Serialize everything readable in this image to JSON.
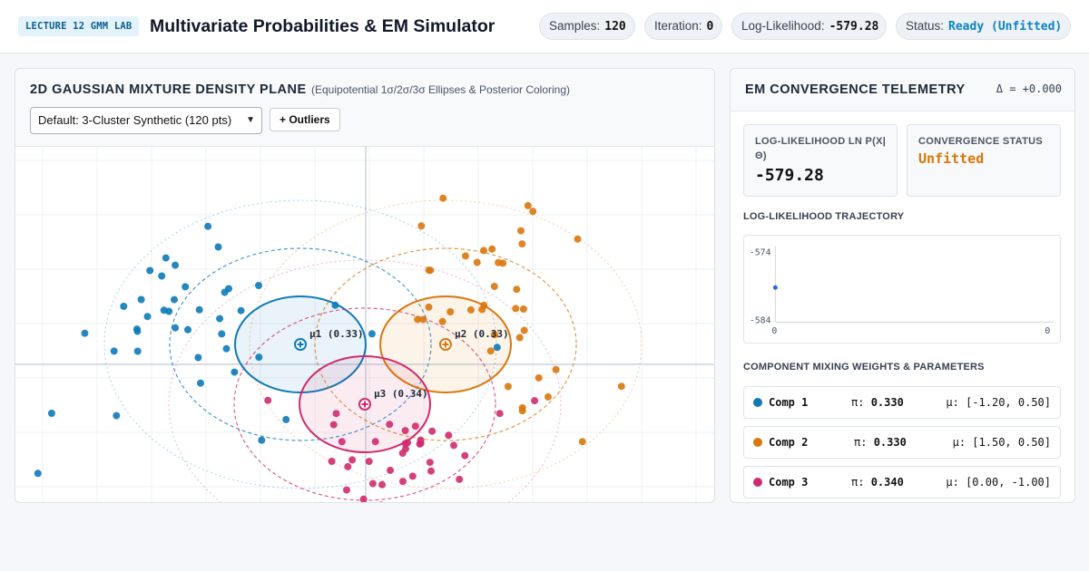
{
  "header": {
    "badge": "LECTURE 12 GMM LAB",
    "title": "Multivariate Probabilities & EM Simulator",
    "stats": [
      {
        "label": "Samples:",
        "value": "120"
      },
      {
        "label": "Iteration:",
        "value": "0"
      },
      {
        "label": "Log-Likelihood:",
        "value": "-579.28"
      },
      {
        "label": "Status:",
        "value": "Ready (Unfitted)"
      }
    ]
  },
  "plot_panel": {
    "title": "2D GAUSSIAN MIXTURE DENSITY PLANE",
    "subtitle": "(Equipotential 1σ/2σ/3σ Ellipses & Posterior Coloring)",
    "dataset_select": "Default: 3-Cluster Synthetic (120 pts)",
    "outliers_button": "+ Outliers",
    "colors": {
      "comp1": "#0d7ab8",
      "comp2": "#d9770d",
      "comp3": "#cf2b6e"
    },
    "component_labels": [
      "μ1 (0.33)",
      "μ2 (0.33)",
      "μ3 (0.34)"
    ]
  },
  "telemetry": {
    "title": "EM CONVERGENCE TELEMETRY",
    "delta": "Δ = +0.000",
    "loglik_label": "LOG-LIKELIHOOD LN P(X|Θ)",
    "loglik_value": "-579.28",
    "status_label": "CONVERGENCE STATUS",
    "status_value": "Unfitted",
    "trajectory_label": "LOG-LIKELIHOOD TRAJECTORY",
    "trajectory": {
      "y_max_label": "-574",
      "y_min_label": "-584",
      "x_min_label": "0",
      "x_max_label": "0",
      "points": [
        [
          0,
          -579.28
        ]
      ]
    },
    "weights_label": "COMPONENT MIXING WEIGHTS & PARAMETERS",
    "components": [
      {
        "name": "Comp 1",
        "pi_label": "π:",
        "pi": "0.330",
        "mu_label": "μ:",
        "mu": "[-1.20, 0.50]",
        "color": "#0d7ab8"
      },
      {
        "name": "Comp 2",
        "pi_label": "π:",
        "pi": "0.330",
        "mu_label": "μ:",
        "mu": "[1.50, 0.50]",
        "color": "#d9770d"
      },
      {
        "name": "Comp 3",
        "pi_label": "π:",
        "pi": "0.340",
        "mu_label": "μ:",
        "mu": "[0.00, -1.00]",
        "color": "#cf2b6e"
      }
    ]
  }
}
